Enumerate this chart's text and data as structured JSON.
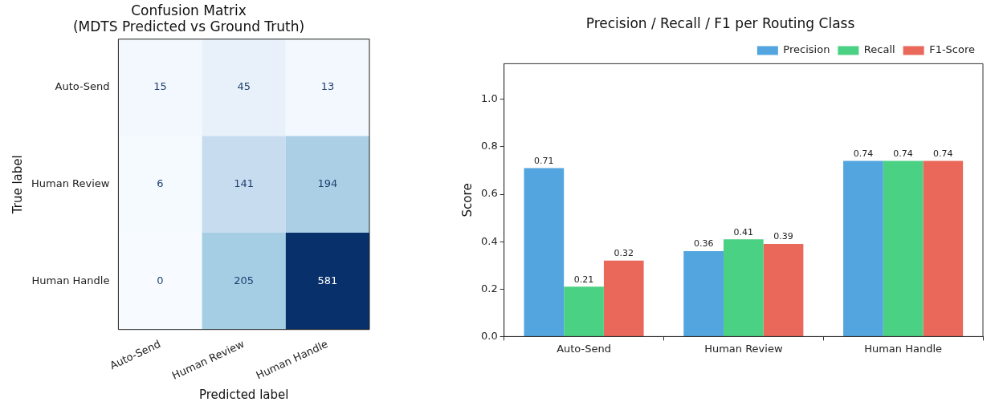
{
  "chart_data": [
    {
      "type": "heatmap",
      "title": "Confusion Matrix\n(MDTS Predicted vs Ground Truth)",
      "xlabel": "Predicted label",
      "ylabel": "True label",
      "categories": [
        "Auto-Send",
        "Human Review",
        "Human Handle"
      ],
      "y_categories": [
        "Auto-Send",
        "Human Review",
        "Human Handle"
      ],
      "cells": [
        [
          15,
          45,
          13
        ],
        [
          6,
          141,
          194
        ],
        [
          0,
          205,
          581
        ]
      ],
      "data_labels": true
    },
    {
      "type": "bar",
      "title": "Precision / Recall / F1 per Routing Class",
      "ylabel": "Score",
      "categories": [
        "Auto-Send",
        "Human Review",
        "Human Handle"
      ],
      "series": [
        {
          "name": "Precision",
          "color": "#52a5de",
          "values": [
            0.71,
            0.36,
            0.74
          ]
        },
        {
          "name": "Recall",
          "color": "#4bd184",
          "values": [
            0.21,
            0.41,
            0.74
          ]
        },
        {
          "name": "F1-Score",
          "color": "#e9685a",
          "values": [
            0.32,
            0.39,
            0.74
          ]
        }
      ],
      "ylim": [
        0,
        1.15
      ],
      "yticks": [
        {
          "value": 0,
          "label": "0.0"
        },
        {
          "value": 0.2,
          "label": "0.2"
        },
        {
          "value": 0.4,
          "label": "0.4"
        },
        {
          "value": 0.6,
          "label": "0.6"
        },
        {
          "value": 0.8,
          "label": "0.8"
        },
        {
          "value": 1,
          "label": "1.0"
        }
      ],
      "data_labels": true,
      "grid": false,
      "legend": "top right"
    }
  ]
}
